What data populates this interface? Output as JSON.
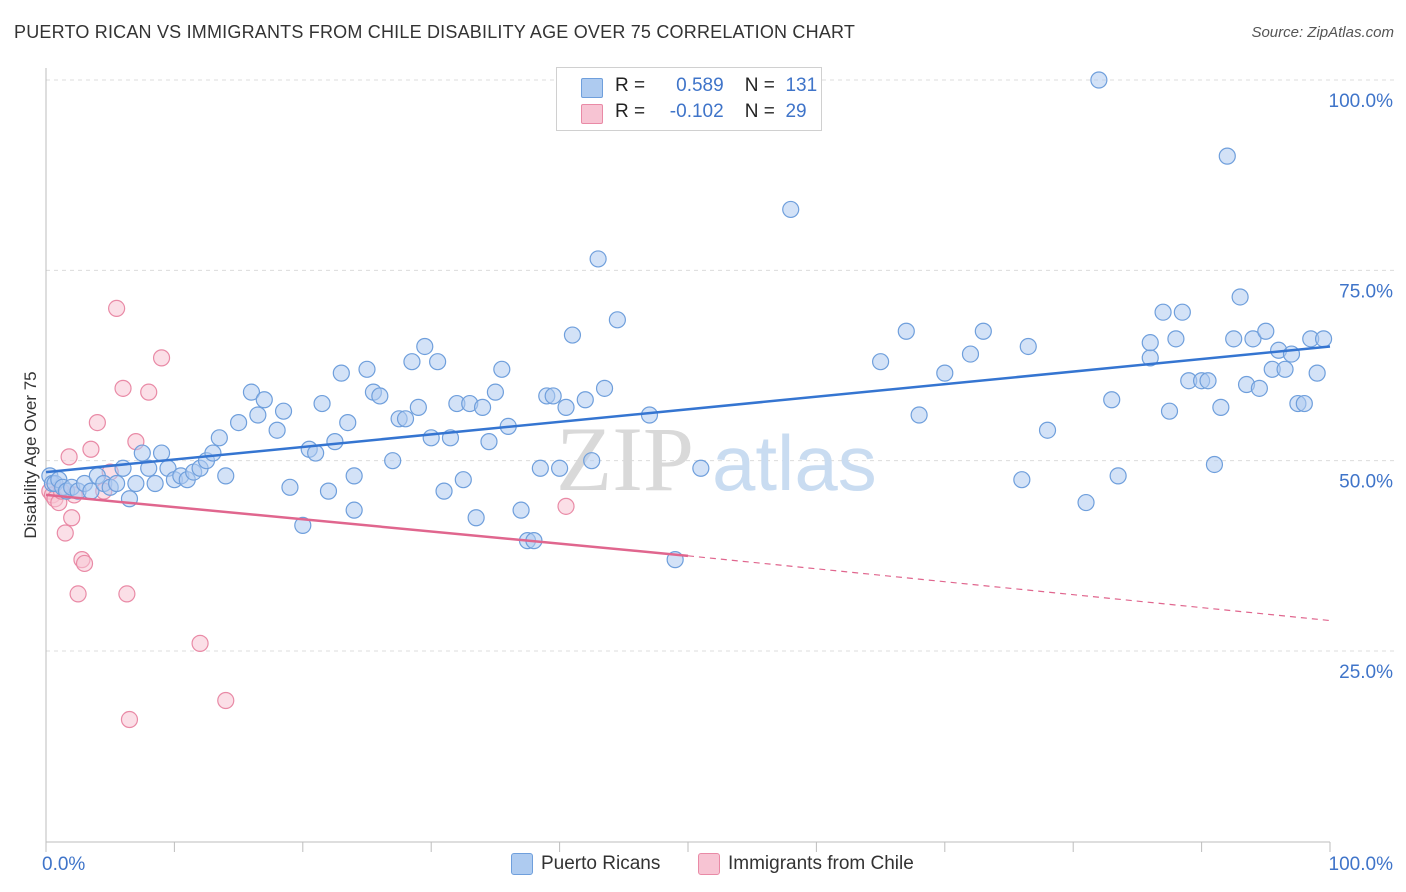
{
  "header": {
    "title": "PUERTO RICAN VS IMMIGRANTS FROM CHILE DISABILITY AGE OVER 75 CORRELATION CHART",
    "source": "Source: ZipAtlas.com"
  },
  "legend_box": {
    "rows": [
      {
        "r_label": "R =",
        "r_value": "0.589",
        "n_label": "N =",
        "n_value": "131"
      },
      {
        "r_label": "R =",
        "r_value": "-0.102",
        "n_label": "N =",
        "n_value": "29"
      }
    ]
  },
  "bottom_legend": {
    "series1": "Puerto Ricans",
    "series2": "Immigrants from Chile"
  },
  "watermark": {
    "a": "ZIP",
    "b": "atlas"
  },
  "colors": {
    "blue_fill": "#aecbf0",
    "blue_stroke": "#6f9fdc",
    "blue_line": "#3575d1",
    "pink_fill": "#f7c4d3",
    "pink_stroke": "#e98aa6",
    "pink_line": "#e0668e",
    "axis_label": "#3f74c9",
    "grid": "#dcdcdc"
  },
  "chart_data": {
    "type": "scatter",
    "title": "PUERTO RICAN VS IMMIGRANTS FROM CHILE DISABILITY AGE OVER 75 CORRELATION CHART",
    "xlabel": "",
    "ylabel": "Disability Age Over 75",
    "xlim": [
      0,
      100
    ],
    "ylim": [
      0,
      105
    ],
    "x_tick_labels": [
      "0.0%",
      "100.0%"
    ],
    "y_tick_labels": [
      "25.0%",
      "50.0%",
      "75.0%",
      "100.0%"
    ],
    "y_ticks": [
      25,
      50,
      75,
      100
    ],
    "grid": true,
    "series": [
      {
        "name": "Puerto Ricans",
        "R": 0.589,
        "N": 131,
        "trend": {
          "x": [
            0,
            100
          ],
          "y": [
            48.5,
            65
          ]
        },
        "points": [
          [
            0.3,
            48
          ],
          [
            0.5,
            47
          ],
          [
            0.7,
            47
          ],
          [
            1,
            47.5
          ],
          [
            1.3,
            46.5
          ],
          [
            1.6,
            46
          ],
          [
            2,
            46.5
          ],
          [
            2.5,
            46
          ],
          [
            3,
            47
          ],
          [
            3.5,
            46
          ],
          [
            4,
            48
          ],
          [
            4.5,
            47
          ],
          [
            5,
            46.5
          ],
          [
            5.5,
            47
          ],
          [
            6,
            49
          ],
          [
            6.5,
            45
          ],
          [
            7,
            47
          ],
          [
            7.5,
            51
          ],
          [
            8,
            49
          ],
          [
            8.5,
            47
          ],
          [
            9,
            51
          ],
          [
            9.5,
            49
          ],
          [
            10,
            47.5
          ],
          [
            10.5,
            48
          ],
          [
            11,
            47.5
          ],
          [
            11.5,
            48.5
          ],
          [
            12,
            49
          ],
          [
            12.5,
            50
          ],
          [
            13,
            51
          ],
          [
            13.5,
            53
          ],
          [
            14,
            48
          ],
          [
            15,
            55
          ],
          [
            16,
            59
          ],
          [
            16.5,
            56
          ],
          [
            17,
            58
          ],
          [
            18,
            54
          ],
          [
            18.5,
            56.5
          ],
          [
            19,
            46.5
          ],
          [
            20,
            41.5
          ],
          [
            20.5,
            51.5
          ],
          [
            21,
            51
          ],
          [
            21.5,
            57.5
          ],
          [
            22,
            46
          ],
          [
            22.5,
            52.5
          ],
          [
            23,
            61.5
          ],
          [
            23.5,
            55
          ],
          [
            24,
            48
          ],
          [
            24,
            43.5
          ],
          [
            25,
            62
          ],
          [
            25.5,
            59
          ],
          [
            26,
            58.5
          ],
          [
            27,
            50
          ],
          [
            27.5,
            55.5
          ],
          [
            28,
            55.5
          ],
          [
            28.5,
            63
          ],
          [
            29,
            57
          ],
          [
            29.5,
            65
          ],
          [
            30,
            53
          ],
          [
            30.5,
            63
          ],
          [
            31,
            46
          ],
          [
            31.5,
            53
          ],
          [
            32,
            57.5
          ],
          [
            32.5,
            47.5
          ],
          [
            33,
            57.5
          ],
          [
            33.5,
            42.5
          ],
          [
            34,
            57
          ],
          [
            34.5,
            52.5
          ],
          [
            35,
            59
          ],
          [
            35.5,
            62
          ],
          [
            36,
            54.5
          ],
          [
            37,
            43.5
          ],
          [
            37.5,
            39.5
          ],
          [
            38,
            39.5
          ],
          [
            38.5,
            49
          ],
          [
            39,
            58.5
          ],
          [
            39.5,
            58.5
          ],
          [
            40,
            49
          ],
          [
            40.5,
            57
          ],
          [
            41,
            66.5
          ],
          [
            42,
            58
          ],
          [
            42.5,
            50
          ],
          [
            43,
            76.5
          ],
          [
            43.5,
            59.5
          ],
          [
            44.5,
            68.5
          ],
          [
            47,
            56
          ],
          [
            49,
            37
          ],
          [
            51,
            49
          ],
          [
            58,
            83
          ],
          [
            65,
            63
          ],
          [
            67,
            67
          ],
          [
            68,
            56
          ],
          [
            70,
            61.5
          ],
          [
            72,
            64
          ],
          [
            73,
            67
          ],
          [
            76,
            47.5
          ],
          [
            76.5,
            65
          ],
          [
            78,
            54
          ],
          [
            81,
            44.5
          ],
          [
            82,
            100
          ],
          [
            83,
            58
          ],
          [
            83.5,
            48
          ],
          [
            86,
            63.5
          ],
          [
            86,
            65.5
          ],
          [
            87,
            69.5
          ],
          [
            87.5,
            56.5
          ],
          [
            88,
            66
          ],
          [
            88.5,
            69.5
          ],
          [
            89,
            60.5
          ],
          [
            90,
            60.5
          ],
          [
            90.5,
            60.5
          ],
          [
            91,
            49.5
          ],
          [
            91.5,
            57
          ],
          [
            92,
            90
          ],
          [
            92.5,
            66
          ],
          [
            93,
            71.5
          ],
          [
            93.5,
            60
          ],
          [
            94,
            66
          ],
          [
            94.5,
            59.5
          ],
          [
            95,
            67
          ],
          [
            95.5,
            62
          ],
          [
            96,
            64.5
          ],
          [
            96.5,
            62
          ],
          [
            97,
            64
          ],
          [
            97.5,
            57.5
          ],
          [
            98,
            57.5
          ],
          [
            98.5,
            66
          ],
          [
            99,
            61.5
          ],
          [
            99.5,
            66
          ]
        ]
      },
      {
        "name": "Immigrants from Chile",
        "R": -0.102,
        "N": 29,
        "trend": {
          "x": [
            0,
            50
          ],
          "y": [
            45.5,
            37.5
          ]
        },
        "trend_dashed": {
          "x": [
            50,
            100
          ],
          "y": [
            37.5,
            29
          ]
        },
        "points": [
          [
            0.3,
            46
          ],
          [
            0.5,
            45.5
          ],
          [
            0.7,
            45
          ],
          [
            1,
            44.5
          ],
          [
            1.2,
            46
          ],
          [
            1.5,
            40.5
          ],
          [
            1.8,
            50.5
          ],
          [
            2,
            42.5
          ],
          [
            2.2,
            45.5
          ],
          [
            2.5,
            32.5
          ],
          [
            2.8,
            37
          ],
          [
            3,
            36.5
          ],
          [
            3.5,
            51.5
          ],
          [
            4,
            55
          ],
          [
            4.5,
            46
          ],
          [
            5,
            48.5
          ],
          [
            5.5,
            70
          ],
          [
            6,
            59.5
          ],
          [
            6.3,
            32.5
          ],
          [
            6.5,
            16
          ],
          [
            7,
            52.5
          ],
          [
            8,
            59
          ],
          [
            9,
            63.5
          ],
          [
            12,
            26
          ],
          [
            14,
            18.5
          ],
          [
            40.5,
            44
          ]
        ]
      }
    ]
  }
}
